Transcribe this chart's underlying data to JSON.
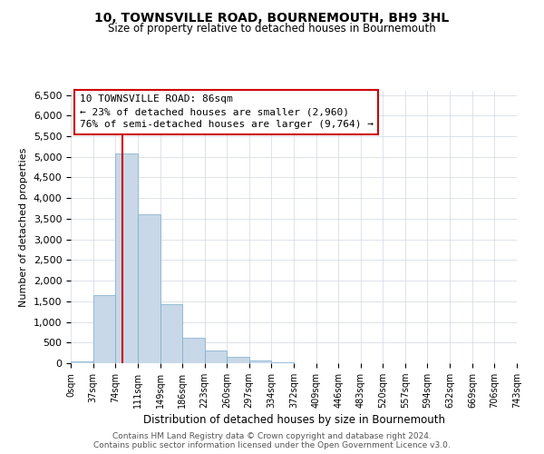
{
  "title": "10, TOWNSVILLE ROAD, BOURNEMOUTH, BH9 3HL",
  "subtitle": "Size of property relative to detached houses in Bournemouth",
  "xlabel": "Distribution of detached houses by size in Bournemouth",
  "ylabel": "Number of detached properties",
  "bar_color": "#c8d8e8",
  "bar_edge_color": "#7aaac8",
  "bin_edges": [
    0,
    37,
    74,
    111,
    149,
    186,
    223,
    260,
    297,
    334,
    372,
    409,
    446,
    483,
    520,
    557,
    594,
    632,
    669,
    706,
    743
  ],
  "bin_labels": [
    "0sqm",
    "37sqm",
    "74sqm",
    "111sqm",
    "149sqm",
    "186sqm",
    "223sqm",
    "260sqm",
    "297sqm",
    "334sqm",
    "372sqm",
    "409sqm",
    "446sqm",
    "483sqm",
    "520sqm",
    "557sqm",
    "594sqm",
    "632sqm",
    "669sqm",
    "706sqm",
    "743sqm"
  ],
  "bar_heights": [
    50,
    1650,
    5080,
    3600,
    1420,
    610,
    305,
    150,
    60,
    20,
    10,
    5,
    0,
    0,
    0,
    0,
    0,
    0,
    0,
    0
  ],
  "ylim": [
    0,
    6600
  ],
  "yticks": [
    0,
    500,
    1000,
    1500,
    2000,
    2500,
    3000,
    3500,
    4000,
    4500,
    5000,
    5500,
    6000,
    6500
  ],
  "vline_x": 86,
  "vline_color": "#cc0000",
  "annotation_line1": "10 TOWNSVILLE ROAD: 86sqm",
  "annotation_line2": "← 23% of detached houses are smaller (2,960)",
  "annotation_line3": "76% of semi-detached houses are larger (9,764) →",
  "footer_line1": "Contains HM Land Registry data © Crown copyright and database right 2024.",
  "footer_line2": "Contains public sector information licensed under the Open Government Licence v3.0.",
  "background_color": "#ffffff",
  "grid_color": "#d0d8e0"
}
